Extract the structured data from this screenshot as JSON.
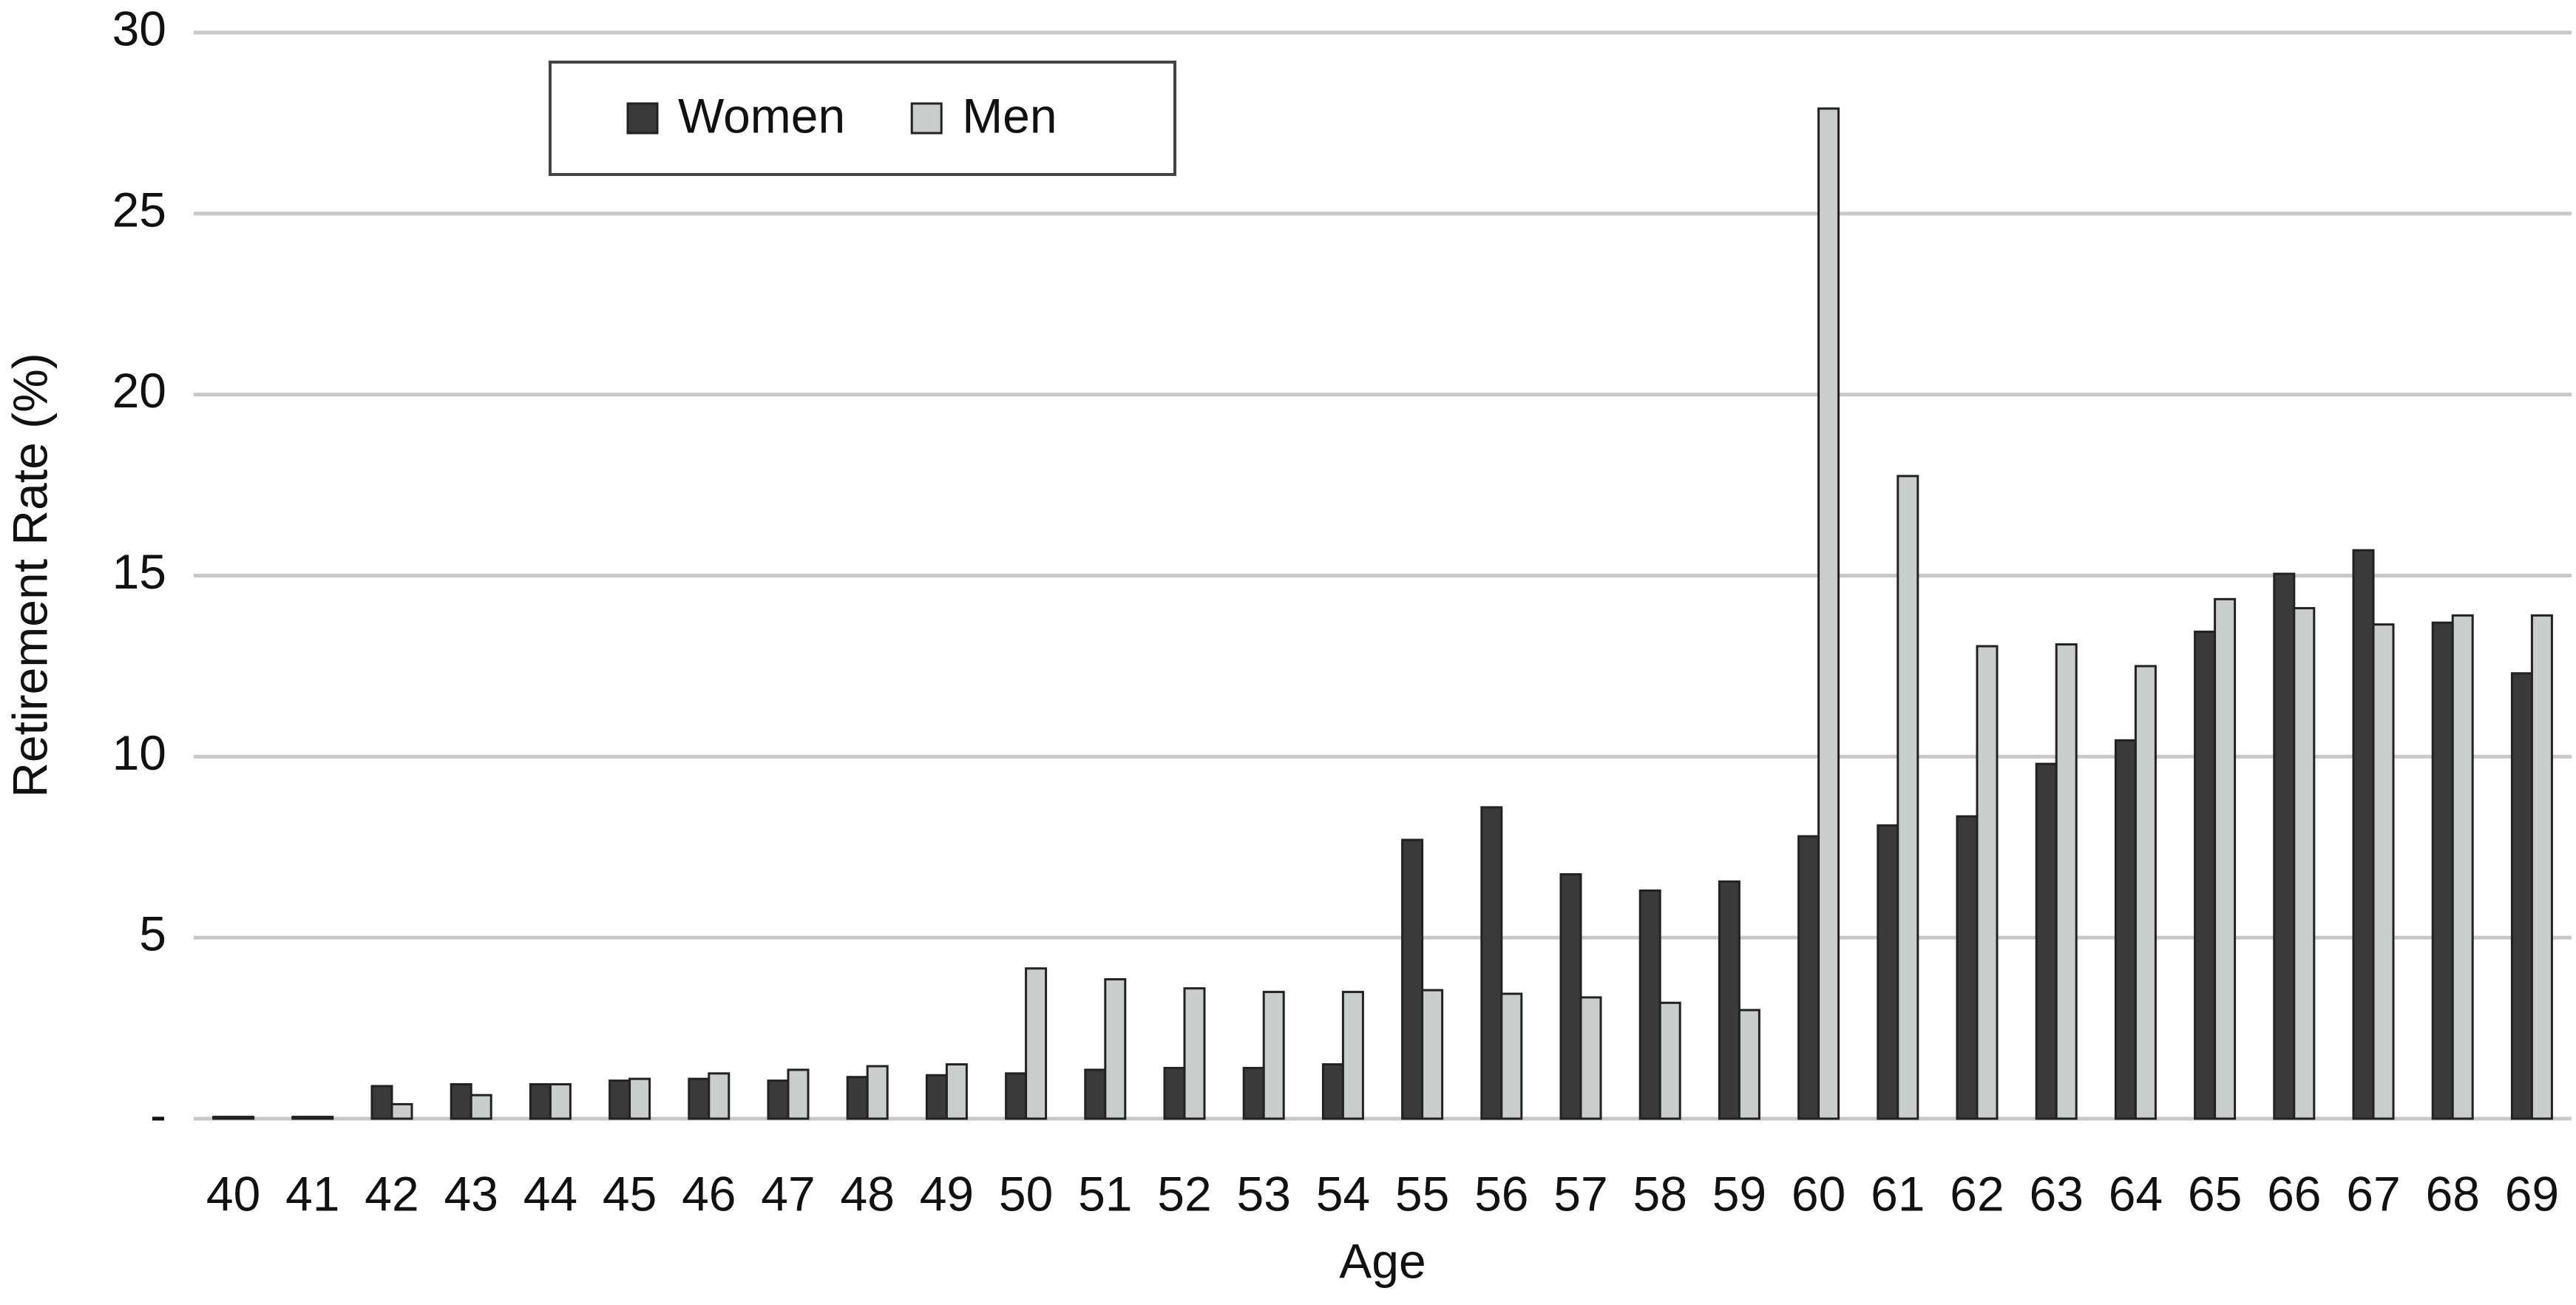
{
  "chart_data": {
    "type": "bar",
    "y_label": "Retirement Rate (%)",
    "x_label": "Age",
    "categories": [
      "40",
      "41",
      "42",
      "43",
      "44",
      "45",
      "46",
      "47",
      "48",
      "49",
      "50",
      "51",
      "52",
      "53",
      "54",
      "55",
      "56",
      "57",
      "58",
      "59",
      "60",
      "61",
      "62",
      "63",
      "64",
      "65",
      "66",
      "67",
      "68",
      "69"
    ],
    "series": [
      {
        "name": "Women",
        "color": "#3a3a3a",
        "values": [
          0.05,
          0.05,
          0.9,
          0.95,
          0.95,
          1.05,
          1.1,
          1.05,
          1.15,
          1.2,
          1.25,
          1.35,
          1.4,
          1.4,
          1.5,
          7.7,
          8.6,
          6.75,
          6.3,
          6.55,
          7.8,
          8.1,
          8.35,
          9.8,
          10.45,
          13.45,
          15.05,
          15.7,
          13.7,
          12.3
        ]
      },
      {
        "name": "Men",
        "color": "#c9cdcc",
        "values": [
          0.05,
          0.05,
          0.4,
          0.65,
          0.95,
          1.1,
          1.25,
          1.35,
          1.45,
          1.5,
          4.15,
          3.85,
          3.6,
          3.5,
          3.5,
          3.55,
          3.45,
          3.35,
          3.2,
          3.0,
          27.9,
          17.75,
          13.05,
          13.1,
          12.5,
          14.35,
          14.1,
          13.65,
          13.9,
          13.9
        ]
      }
    ],
    "ylim": [
      0,
      30
    ],
    "yticks": [
      {
        "value": 0,
        "label": "-"
      },
      5,
      10,
      15,
      20,
      25,
      30
    ],
    "grid": true,
    "legend": "upper left"
  }
}
